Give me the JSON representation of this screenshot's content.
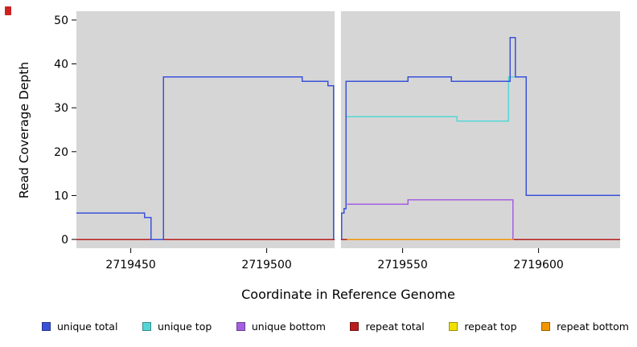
{
  "page": {
    "background": "#ffffff",
    "artifact_color": "#cc2222"
  },
  "chart_data": {
    "type": "line",
    "title": "",
    "xlabel": "Coordinate in Reference Genome",
    "ylabel": "Read Coverage Depth",
    "xlim": [
      2719430,
      2719630
    ],
    "ylim": [
      0,
      50
    ],
    "ylim_padded": [
      -2,
      52
    ],
    "x_ticks": [
      2719450,
      2719500,
      2719550,
      2719600
    ],
    "y_ticks": [
      0,
      10,
      20,
      30,
      40,
      50
    ],
    "panel_background": "#d6d6d6",
    "grid": false,
    "legend_position": "bottom",
    "gap": {
      "x_start": 2719525,
      "x_end": 2719527.3,
      "color": "#ffffff"
    },
    "series": [
      {
        "name": "repeat total",
        "color": "#b81d1d",
        "segments": [
          [
            [
              2719430,
              0
            ],
            [
              2719630,
              0
            ]
          ]
        ]
      },
      {
        "name": "repeat top",
        "color": "#f0e000",
        "segments": [
          [
            [
              2719529.6,
              0
            ],
            [
              2719590,
              0
            ]
          ]
        ]
      },
      {
        "name": "repeat bottom",
        "color": "#f09600",
        "segments": [
          [
            [
              2719529.6,
              0
            ],
            [
              2719591,
              0
            ]
          ]
        ]
      },
      {
        "name": "unique bottom",
        "color": "#a55fe0",
        "segments": [
          [
            [
              2719529.6,
              8
            ],
            [
              2719552,
              8
            ],
            [
              2719552,
              9
            ],
            [
              2719590.5,
              9
            ],
            [
              2719590.5,
              0
            ]
          ]
        ]
      },
      {
        "name": "unique top",
        "color": "#54d6d6",
        "segments": [
          [
            [
              2719529.2,
              28
            ],
            [
              2719570,
              28
            ],
            [
              2719570,
              27
            ],
            [
              2719589,
              27
            ],
            [
              2719589,
              37
            ],
            [
              2719593,
              37
            ]
          ]
        ]
      },
      {
        "name": "unique total",
        "color": "#3a52d9",
        "segments": [
          [
            [
              2719430,
              6
            ],
            [
              2719455,
              6
            ],
            [
              2719455,
              5
            ],
            [
              2719457.5,
              5
            ],
            [
              2719457.5,
              0
            ],
            [
              2719462,
              0
            ],
            [
              2719462,
              37
            ],
            [
              2719513,
              37
            ],
            [
              2719513,
              36
            ],
            [
              2719522.5,
              36
            ],
            [
              2719522.5,
              35
            ],
            [
              2719524.6,
              35
            ],
            [
              2719524.6,
              0
            ]
          ],
          [
            [
              2719527.5,
              0
            ],
            [
              2719527.5,
              6
            ],
            [
              2719528.4,
              6
            ],
            [
              2719528.4,
              7
            ],
            [
              2719529.2,
              7
            ],
            [
              2719529.2,
              36
            ],
            [
              2719552,
              36
            ],
            [
              2719552,
              37
            ],
            [
              2719568,
              37
            ],
            [
              2719568,
              36
            ],
            [
              2719589.5,
              36
            ],
            [
              2719589.5,
              46
            ],
            [
              2719591.5,
              46
            ],
            [
              2719591.5,
              37
            ],
            [
              2719595.5,
              37
            ],
            [
              2719595.5,
              10
            ],
            [
              2719630,
              10
            ]
          ]
        ]
      }
    ],
    "legend": [
      {
        "label": "unique total"
      },
      {
        "label": "unique top"
      },
      {
        "label": "unique bottom"
      },
      {
        "label": "repeat total"
      },
      {
        "label": "repeat top"
      },
      {
        "label": "repeat bottom"
      }
    ]
  }
}
